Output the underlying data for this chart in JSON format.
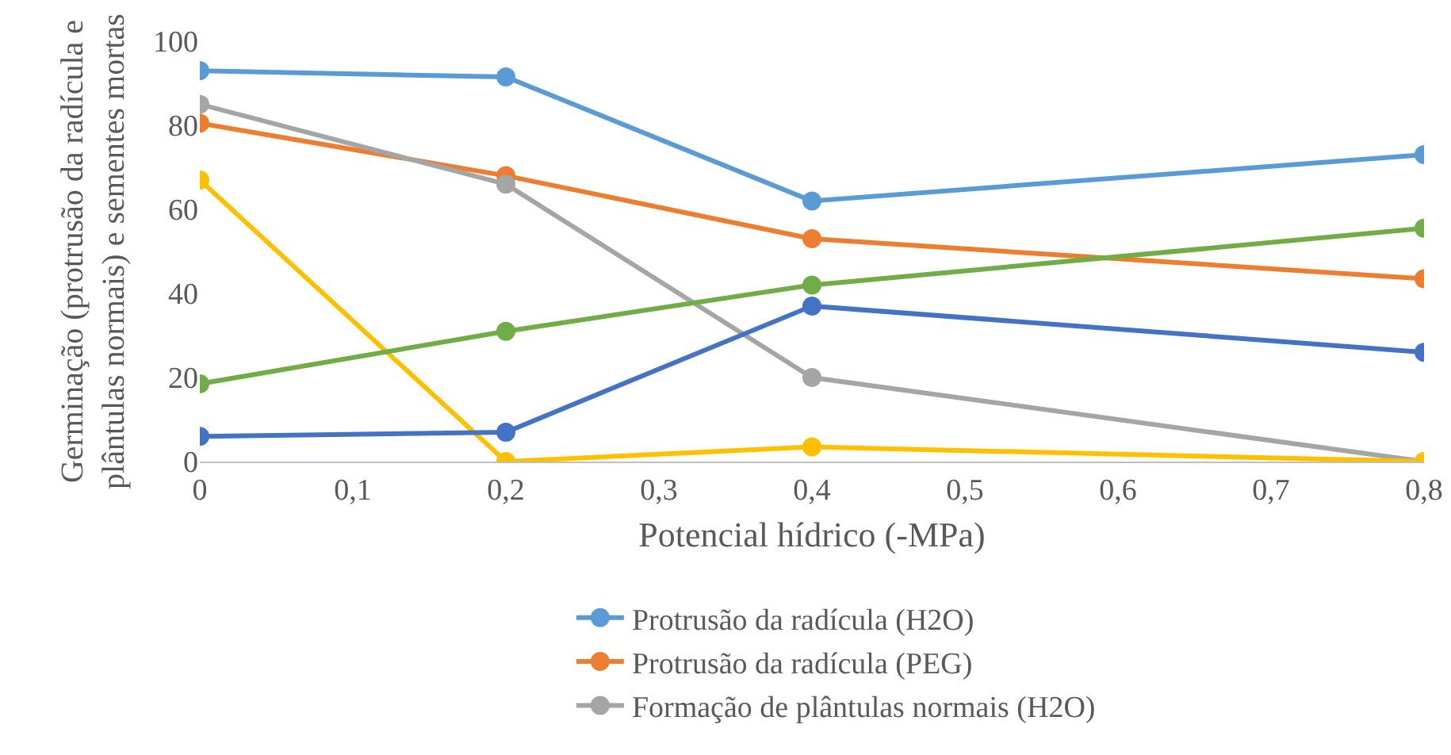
{
  "chart_data": {
    "type": "line",
    "xlabel": "Potencial hídrico (-MPa)",
    "ylabel": "Germinação (protrusão da radícula e\nplântulas normais) e sementes mortas",
    "x": [
      0,
      0.2,
      0.4,
      0.8
    ],
    "series": [
      {
        "name": "Protrusão da radícula (H2O)",
        "color": "#5b9bd5",
        "values": [
          93,
          91.5,
          62,
          73
        ]
      },
      {
        "name": "Protrusão da radícula (PEG)",
        "color": "#ed7d31",
        "values": [
          80.5,
          68,
          53,
          43.5
        ]
      },
      {
        "name": "Formação de plântulas normais (H2O)",
        "color": "#a5a5a5",
        "values": [
          85,
          66,
          20,
          0
        ]
      },
      {
        "color": "#ffc000",
        "values": [
          67,
          0,
          3.5,
          0
        ]
      },
      {
        "color": "#4472c4",
        "values": [
          6,
          7,
          37,
          26
        ]
      },
      {
        "color": "#70ad47",
        "values": [
          18.5,
          31,
          42,
          55.5
        ]
      }
    ],
    "xlim": [
      0,
      0.8
    ],
    "xticks": [
      0,
      {
        "value": 0.1,
        "label": "0,1"
      },
      {
        "value": 0.2,
        "label": "0,2"
      },
      {
        "value": 0.3,
        "label": "0,3"
      },
      {
        "value": 0.4,
        "label": "0,4"
      },
      {
        "value": 0.5,
        "label": "0,5"
      },
      {
        "value": 0.6,
        "label": "0,6"
      },
      {
        "value": 0.7,
        "label": "0,7"
      },
      {
        "value": 0.8,
        "label": "0,8"
      }
    ],
    "ylim": [
      0,
      100
    ],
    "yticks": [
      0,
      20,
      40,
      60,
      80,
      100
    ],
    "grid": false,
    "legend": "bottom",
    "marker": "circle",
    "line_style": "solid"
  }
}
